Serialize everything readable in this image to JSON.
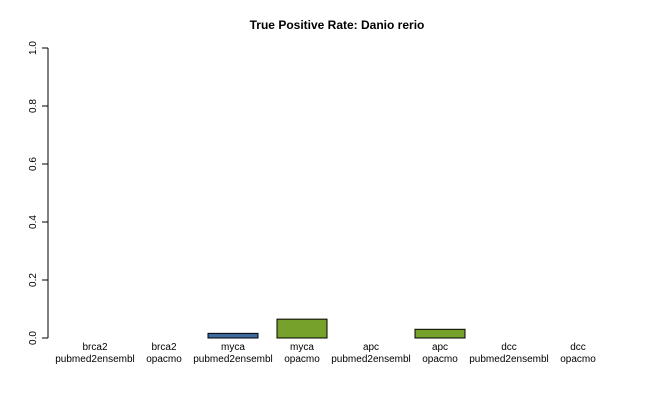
{
  "chart_data": {
    "type": "bar",
    "title": "True Positive Rate: Danio rerio",
    "xlabel": "",
    "ylabel": "",
    "ylim": [
      0,
      1
    ],
    "yticks": [
      "0.0",
      "0.2",
      "0.4",
      "0.6",
      "0.8",
      "1.0"
    ],
    "grid": false,
    "legend": "none",
    "categories": [
      {
        "gene": "brca2",
        "method": "pubmed2ensembl"
      },
      {
        "gene": "brca2",
        "method": "opacmo"
      },
      {
        "gene": "myca",
        "method": "pubmed2ensembl"
      },
      {
        "gene": "myca",
        "method": "opacmo"
      },
      {
        "gene": "apc",
        "method": "pubmed2ensembl"
      },
      {
        "gene": "apc",
        "method": "opacmo"
      },
      {
        "gene": "dcc",
        "method": "pubmed2ensembl"
      },
      {
        "gene": "dcc",
        "method": "opacmo"
      }
    ],
    "values": [
      0,
      0,
      0.016,
      0.065,
      0,
      0.03,
      0,
      0
    ],
    "colors": {
      "pubmed2ensembl": "#3E6A9E",
      "opacmo": "#76A22B",
      "border": "#000000"
    }
  }
}
